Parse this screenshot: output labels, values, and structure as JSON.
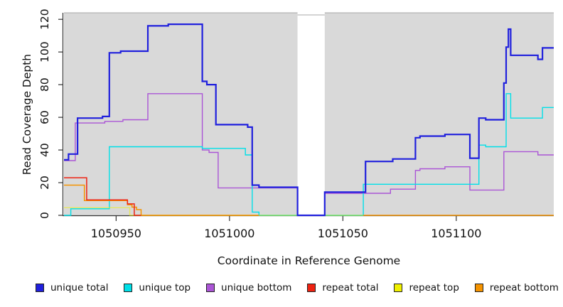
{
  "x_axis": {
    "label": "Coordinate in Reference Genome",
    "ticks": [
      1050950,
      1051000,
      1051050,
      1051100
    ]
  },
  "y_axis": {
    "label": "Read Coverage Depth",
    "ticks": [
      0,
      20,
      40,
      60,
      80,
      100,
      120
    ]
  },
  "colors": {
    "plot_background": "#d9d9d9",
    "frame_line": "#a8a8a8",
    "axis_line": "#333333",
    "missing_band": "#ffffff",
    "text": "#111111"
  },
  "chart_data": {
    "type": "line",
    "subtype": "step-after",
    "xlim": [
      1050927,
      1051143
    ],
    "ylim": [
      0,
      124
    ],
    "grid": false,
    "legend_position": "bottom",
    "missing_data_band": {
      "x_start": 1051030,
      "x_end": 1051042
    },
    "draw_order": [
      "unique-bottom",
      "unique-top",
      "repeat-top",
      "repeat-bottom",
      "repeat-total",
      "unique-total"
    ],
    "series": [
      {
        "id": "unique-total",
        "label": "unique total",
        "color": "#2020dd",
        "width": 2.2,
        "opacity": 1,
        "segments": [
          [
            [
              1050927,
              34
            ],
            [
              1050929,
              37.5
            ],
            [
              1050933,
              59.5
            ],
            [
              1050944,
              60.5
            ],
            [
              1050947,
              99.5
            ],
            [
              1050952,
              100.5
            ],
            [
              1050964,
              116
            ],
            [
              1050973,
              117
            ],
            [
              1050988,
              82
            ],
            [
              1050990,
              80
            ],
            [
              1050994,
              55.5
            ],
            [
              1051008,
              54
            ],
            [
              1051010,
              18.5
            ],
            [
              1051013,
              17.2
            ],
            [
              1051030,
              0
            ],
            [
              1051042,
              14.2
            ],
            [
              1051060,
              33
            ],
            [
              1051072,
              34.5
            ],
            [
              1051082,
              47.5
            ],
            [
              1051084,
              48.5
            ],
            [
              1051095,
              49.5
            ],
            [
              1051106,
              35
            ],
            [
              1051110,
              59.5
            ],
            [
              1051113,
              58.5
            ],
            [
              1051121,
              81
            ],
            [
              1051122,
              103
            ],
            [
              1051123,
              114
            ],
            [
              1051124,
              98
            ],
            [
              1051136,
              95.5
            ],
            [
              1051138,
              102.5
            ],
            [
              1051143,
              102.5
            ]
          ]
        ]
      },
      {
        "id": "unique-top",
        "label": "unique top",
        "color": "#00e0e8",
        "width": 1.4,
        "opacity": 1,
        "segments": [
          [
            [
              1050927,
              0
            ],
            [
              1050930,
              4
            ],
            [
              1050947,
              42
            ],
            [
              1050988,
              41
            ],
            [
              1051007,
              37
            ],
            [
              1051010,
              2
            ],
            [
              1051013,
              0
            ],
            [
              1051059,
              19
            ],
            [
              1051110,
              43
            ],
            [
              1051113,
              42
            ],
            [
              1051122,
              74.5
            ],
            [
              1051124,
              59.5
            ],
            [
              1051138,
              66
            ],
            [
              1051143,
              66
            ]
          ]
        ]
      },
      {
        "id": "unique-bottom",
        "label": "unique bottom",
        "color": "#ab55d6",
        "width": 1.4,
        "opacity": 1,
        "segments": [
          [
            [
              1050927,
              33.5
            ],
            [
              1050932,
              56.5
            ],
            [
              1050945,
              57.5
            ],
            [
              1050953,
              58.5
            ],
            [
              1050964,
              74.5
            ],
            [
              1050988,
              40
            ],
            [
              1050991,
              38.5
            ],
            [
              1050995,
              16.8
            ],
            [
              1051030,
              0
            ],
            [
              1051042,
              13.5
            ],
            [
              1051071,
              16
            ],
            [
              1051082,
              27.5
            ],
            [
              1051084,
              28.5
            ],
            [
              1051095,
              29.7
            ],
            [
              1051106,
              15.5
            ],
            [
              1051121,
              39
            ],
            [
              1051136,
              37
            ],
            [
              1051143,
              37
            ]
          ]
        ]
      },
      {
        "id": "repeat-total",
        "label": "repeat total",
        "color": "#ee2211",
        "width": 1.5,
        "opacity": 1,
        "segments": [
          [
            [
              1050927,
              23
            ],
            [
              1050937,
              9.5
            ],
            [
              1050955,
              7
            ],
            [
              1050958,
              0
            ],
            [
              1050961,
              0
            ]
          ]
        ]
      },
      {
        "id": "repeat-top",
        "label": "repeat top",
        "color": "#f0f000",
        "width": 1.4,
        "opacity": 0.55,
        "segments": [
          [
            [
              1050927,
              4.7
            ],
            [
              1050956,
              0
            ],
            [
              1051059,
              0
            ]
          ]
        ]
      },
      {
        "id": "repeat-bottom",
        "label": "repeat bottom",
        "color": "#f59300",
        "width": 1.5,
        "opacity": 1,
        "segments": [
          [
            [
              1050927,
              18.5
            ],
            [
              1050936,
              9
            ],
            [
              1050955,
              6.5
            ],
            [
              1050957,
              5
            ],
            [
              1050959,
              3.5
            ],
            [
              1050961,
              0
            ],
            [
              1051013,
              0
            ]
          ],
          [
            [
              1051059,
              0
            ],
            [
              1051143,
              0
            ]
          ]
        ]
      }
    ]
  }
}
